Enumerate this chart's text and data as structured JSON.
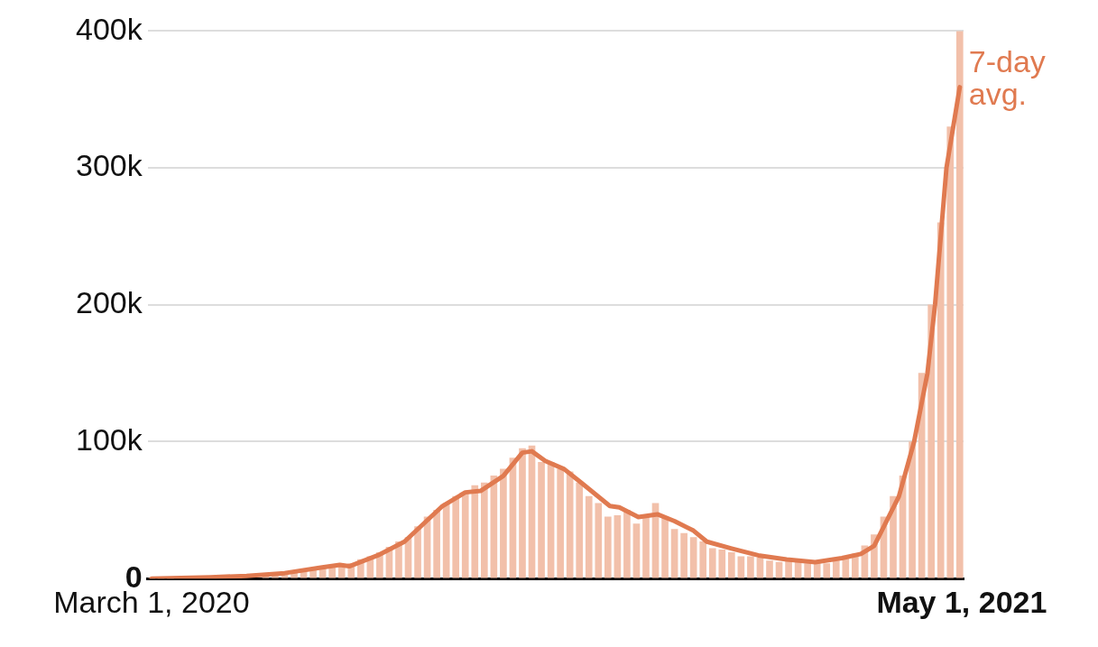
{
  "chart_data": {
    "type": "bar",
    "x": [
      "2020-03-01",
      "2020-03-06",
      "2020-03-11",
      "2020-03-16",
      "2020-03-21",
      "2020-03-26",
      "2020-03-31",
      "2020-04-05",
      "2020-04-10",
      "2020-04-15",
      "2020-04-20",
      "2020-04-25",
      "2020-04-30",
      "2020-05-05",
      "2020-05-10",
      "2020-05-15",
      "2020-05-20",
      "2020-05-25",
      "2020-05-30",
      "2020-06-04",
      "2020-06-09",
      "2020-06-14",
      "2020-06-19",
      "2020-06-24",
      "2020-06-29",
      "2020-07-04",
      "2020-07-09",
      "2020-07-14",
      "2020-07-19",
      "2020-07-24",
      "2020-07-29",
      "2020-08-03",
      "2020-08-08",
      "2020-08-13",
      "2020-08-18",
      "2020-08-23",
      "2020-08-28",
      "2020-09-02",
      "2020-09-07",
      "2020-09-12",
      "2020-09-17",
      "2020-09-22",
      "2020-09-27",
      "2020-10-02",
      "2020-10-07",
      "2020-10-12",
      "2020-10-17",
      "2020-10-22",
      "2020-10-27",
      "2020-11-01",
      "2020-11-06",
      "2020-11-11",
      "2020-11-16",
      "2020-11-21",
      "2020-11-26",
      "2020-12-01",
      "2020-12-06",
      "2020-12-11",
      "2020-12-16",
      "2020-12-21",
      "2020-12-26",
      "2020-12-31",
      "2021-01-05",
      "2021-01-10",
      "2021-01-15",
      "2021-01-20",
      "2021-01-25",
      "2021-01-30",
      "2021-02-04",
      "2021-02-09",
      "2021-02-14",
      "2021-02-19",
      "2021-02-24",
      "2021-03-01",
      "2021-03-06",
      "2021-03-11",
      "2021-03-16",
      "2021-03-21",
      "2021-03-26",
      "2021-03-31",
      "2021-04-05",
      "2021-04-10",
      "2021-04-15",
      "2021-04-20",
      "2021-04-25",
      "2021-04-30"
    ],
    "series": [
      {
        "color": "#f2c0aa",
        "values": [
          0,
          0,
          0,
          null,
          null,
          null,
          null,
          null,
          null,
          null,
          null,
          null,
          2000,
          3000,
          4000,
          5000,
          6000,
          7000,
          8000,
          9500,
          10000,
          11000,
          14000,
          16000,
          19000,
          23000,
          27000,
          30000,
          38000,
          45000,
          50000,
          55000,
          60000,
          62000,
          68000,
          70000,
          75000,
          80000,
          88000,
          95000,
          97000,
          85000,
          85000,
          80000,
          78000,
          70000,
          60000,
          55000,
          45000,
          46000,
          50000,
          40000,
          45000,
          55000,
          45000,
          36000,
          33000,
          30000,
          27000,
          22000,
          21000,
          19000,
          16000,
          16000,
          15000,
          13000,
          12000,
          13000,
          12000,
          11000,
          12000,
          11000,
          13000,
          15000,
          18000,
          24000,
          32000,
          45000,
          60000,
          75000,
          100000,
          150000,
          200000,
          260000,
          330000,
          400000
        ]
      },
      {
        "type": "line",
        "name": "7-day avg.",
        "color": "#e07a50",
        "x": [
          "2020-03-01",
          "2020-04-01",
          "2020-04-20",
          "2020-05-10",
          "2020-05-29",
          "2020-06-08",
          "2020-06-13",
          "2020-06-28",
          "2020-07-12",
          "2020-07-22",
          "2020-08-01",
          "2020-08-13",
          "2020-08-21",
          "2020-09-02",
          "2020-09-12",
          "2020-09-17",
          "2020-09-24",
          "2020-10-04",
          "2020-10-13",
          "2020-10-28",
          "2020-11-02",
          "2020-11-12",
          "2020-11-22",
          "2020-12-01",
          "2020-12-11",
          "2020-12-18",
          "2020-12-31",
          "2021-01-14",
          "2021-01-29",
          "2021-02-13",
          "2021-02-27",
          "2021-03-09",
          "2021-03-16",
          "2021-03-29",
          "2021-04-06",
          "2021-04-13",
          "2021-04-17",
          "2021-04-23",
          "2021-04-30"
        ],
        "values": [
          0,
          1000,
          2000,
          4000,
          8000,
          10000,
          9000,
          17000,
          27000,
          40000,
          53000,
          63000,
          64000,
          75000,
          92000,
          93000,
          86000,
          80000,
          70000,
          53000,
          52000,
          45000,
          47000,
          42000,
          35000,
          27000,
          22000,
          17000,
          14000,
          12000,
          15000,
          18000,
          24000,
          60000,
          100000,
          150000,
          200000,
          300000,
          359000
        ]
      }
    ],
    "xlim": [
      "2020-02-28",
      "2021-05-02"
    ],
    "xticks": [
      {
        "value": "2020-03-01",
        "label": "March 1, 2020"
      },
      {
        "value": "2021-05-01",
        "label": "May 1, 2021"
      }
    ],
    "ylim": [
      0,
      400000
    ],
    "yticks": [
      {
        "value": 0,
        "label": "0"
      },
      {
        "value": 100000,
        "label": "100k"
      },
      {
        "value": 200000,
        "label": "200k"
      },
      {
        "value": 300000,
        "label": "300k"
      },
      {
        "value": 400000,
        "label": "400k"
      }
    ],
    "grid": "y",
    "legend": false,
    "marker": "none",
    "line_style": "solid"
  }
}
